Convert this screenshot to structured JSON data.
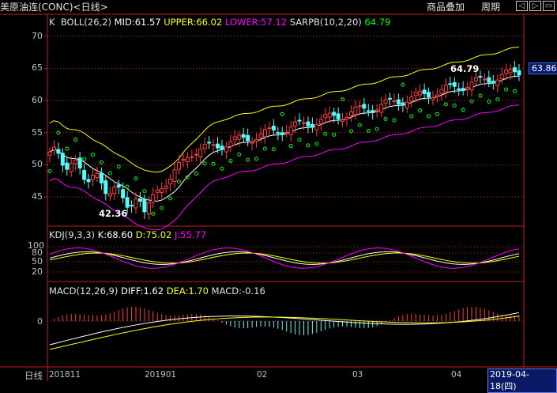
{
  "header": {
    "title": "美原油连(CONC)<日线>",
    "buttons": [
      "商品叠加",
      "周期"
    ],
    "nav_icons": [
      "arrow-left-icon",
      "arrow-right-icon",
      "restore-icon"
    ]
  },
  "price_panel": {
    "legend": {
      "k": "K",
      "boll": "BOLL(26,2)",
      "mid": "MID:61.57",
      "upper": "UPPER:66.02",
      "lower": "LOWER:57.12",
      "sarpb": "SARPB(10,2,20)",
      "sar_value": "64.79"
    },
    "y_ticks": [
      "70",
      "65",
      "60",
      "55",
      "50",
      "45"
    ],
    "high_label": "64.79",
    "low_label": "42.36",
    "current_price": "63.86"
  },
  "kdj_panel": {
    "legend": {
      "name": "KDJ(9,3,3)",
      "k": "K:68.60",
      "d": "D:75.02",
      "j": "J:55.77"
    },
    "y_ticks": [
      "100",
      "80",
      "50",
      "20"
    ]
  },
  "macd_panel": {
    "legend": {
      "name": "MACD(12,26,9)",
      "diff": "DIFF:1.62",
      "dea": "DEA:1.70",
      "macd": "MACD:-0.16"
    },
    "y_ticks": [
      "0"
    ]
  },
  "footer": {
    "period": "日线",
    "x_ticks": [
      "201811",
      "201901",
      "02",
      "03",
      "04"
    ],
    "cursor_date": "2019-04-18(四)"
  },
  "colors": {
    "up": "#ff3c3c",
    "down": "#54fcfc",
    "boll_mid": "#ffffff",
    "boll_upper": "#ffff00",
    "boll_lower": "#ff00ff",
    "sar": "#00ff00",
    "grid": "#c81e1e"
  }
}
